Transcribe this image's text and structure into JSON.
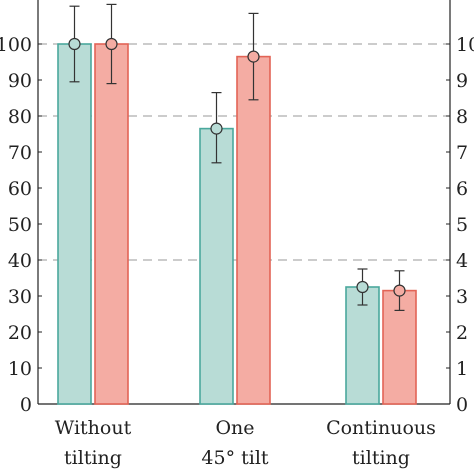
{
  "chart_data": {
    "type": "bar",
    "categories": [
      [
        "Without",
        "tilting"
      ],
      [
        "One",
        "45° tilt"
      ],
      [
        "Continuous",
        "tilting"
      ]
    ],
    "ylim": [
      0,
      115
    ],
    "y_ticks_left": [
      "0",
      "10",
      "20",
      "30",
      "40",
      "50",
      "60",
      "70",
      "80",
      "90",
      "100"
    ],
    "y_ticks_right": [
      "0",
      "1",
      "2",
      "3",
      "4",
      "5",
      "6",
      "7",
      "8",
      "9",
      "10"
    ],
    "grid": "dashed horizontal at 40, 80, 100",
    "series": [
      {
        "color": "#b8dcd6",
        "edge": "#4aa89d",
        "values": [
          100,
          76.5,
          32.5
        ],
        "error_low": [
          89.5,
          67,
          27.5
        ],
        "error_high": [
          110.5,
          86.5,
          37.5
        ]
      },
      {
        "color": "#f4aca3",
        "edge": "#e26456",
        "values": [
          100,
          96.5,
          31.5
        ],
        "error_low": [
          89,
          84.5,
          26
        ],
        "error_high": [
          111,
          108.5,
          37
        ]
      }
    ]
  }
}
